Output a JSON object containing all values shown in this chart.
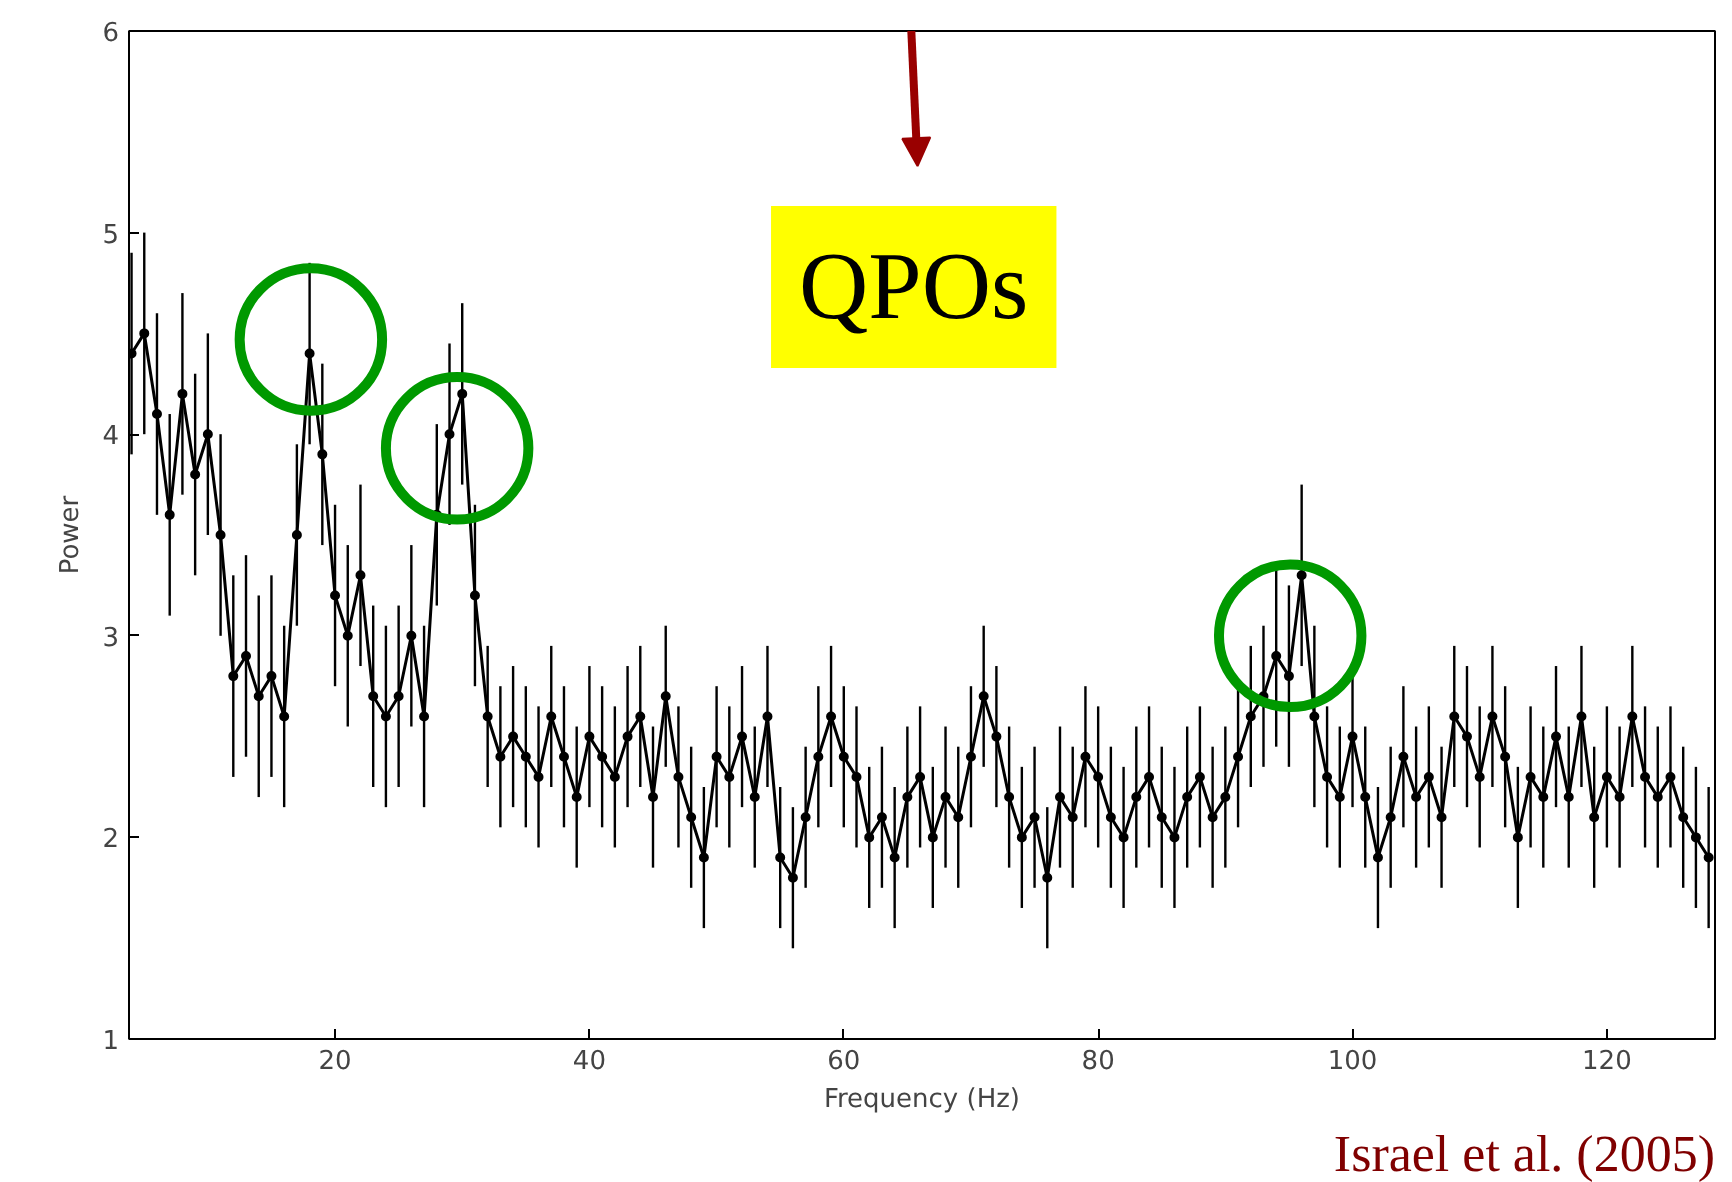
{
  "chart_data": {
    "type": "line",
    "xlabel": "Frequency (Hz)",
    "ylabel": "Power",
    "x": [
      4,
      5,
      6,
      7,
      8,
      9,
      10,
      11,
      12,
      13,
      14,
      15,
      16,
      17,
      18,
      19,
      20,
      21,
      22,
      23,
      24,
      25,
      26,
      27,
      28,
      29,
      30,
      31,
      32,
      33,
      34,
      35,
      36,
      37,
      38,
      39,
      40,
      41,
      42,
      43,
      44,
      45,
      46,
      47,
      48,
      49,
      50,
      51,
      52,
      53,
      54,
      55,
      56,
      57,
      58,
      59,
      60,
      61,
      62,
      63,
      64,
      65,
      66,
      67,
      68,
      69,
      70,
      71,
      72,
      73,
      74,
      75,
      76,
      77,
      78,
      79,
      80,
      81,
      82,
      83,
      84,
      85,
      86,
      87,
      88,
      89,
      90,
      91,
      92,
      93,
      94,
      95,
      96,
      97,
      98,
      99,
      100,
      101,
      102,
      103,
      104,
      105,
      106,
      107,
      108,
      109,
      110,
      111,
      112,
      113,
      114,
      115,
      116,
      117,
      118,
      119,
      120,
      121,
      122,
      123,
      124,
      125,
      126,
      127,
      128
    ],
    "series": [
      {
        "color": "#000000",
        "values": [
          4.4,
          4.5,
          4.1,
          3.6,
          4.2,
          3.8,
          4.0,
          3.5,
          2.8,
          2.9,
          2.7,
          2.8,
          2.6,
          3.5,
          4.4,
          3.9,
          3.2,
          3.0,
          3.3,
          2.7,
          2.6,
          2.7,
          3.0,
          2.6,
          3.6,
          4.0,
          4.2,
          3.2,
          2.6,
          2.4,
          2.5,
          2.4,
          2.3,
          2.6,
          2.4,
          2.2,
          2.5,
          2.4,
          2.3,
          2.5,
          2.6,
          2.2,
          2.7,
          2.3,
          2.1,
          1.9,
          2.4,
          2.3,
          2.5,
          2.2,
          2.6,
          1.9,
          1.8,
          2.1,
          2.4,
          2.6,
          2.4,
          2.3,
          2.0,
          2.1,
          1.9,
          2.2,
          2.3,
          2.0,
          2.2,
          2.1,
          2.4,
          2.7,
          2.5,
          2.2,
          2.0,
          2.1,
          1.8,
          2.2,
          2.1,
          2.4,
          2.3,
          2.1,
          2.0,
          2.2,
          2.3,
          2.1,
          2.0,
          2.2,
          2.3,
          2.1,
          2.2,
          2.4,
          2.6,
          2.7,
          2.9,
          2.8,
          3.3,
          2.6,
          2.3,
          2.2,
          2.5,
          2.2,
          1.9,
          2.1,
          2.4,
          2.2,
          2.3,
          2.1,
          2.6,
          2.5,
          2.3,
          2.6,
          2.4,
          2.0,
          2.3,
          2.2,
          2.5,
          2.2,
          2.6,
          2.1,
          2.3,
          2.2,
          2.6,
          2.3,
          2.2,
          2.3,
          2.1,
          2.0,
          1.9
        ],
        "errors": [
          0.5,
          0.5,
          0.5,
          0.5,
          0.5,
          0.5,
          0.5,
          0.5,
          0.5,
          0.5,
          0.5,
          0.5,
          0.45,
          0.45,
          0.45,
          0.45,
          0.45,
          0.45,
          0.45,
          0.45,
          0.45,
          0.45,
          0.45,
          0.45,
          0.45,
          0.45,
          0.45,
          0.45,
          0.35,
          0.35,
          0.35,
          0.35,
          0.35,
          0.35,
          0.35,
          0.35,
          0.35,
          0.35,
          0.35,
          0.35,
          0.35,
          0.35,
          0.35,
          0.35,
          0.35,
          0.35,
          0.35,
          0.35,
          0.35,
          0.35,
          0.35,
          0.35,
          0.35,
          0.35,
          0.35,
          0.35,
          0.35,
          0.35,
          0.35,
          0.35,
          0.35,
          0.35,
          0.35,
          0.35,
          0.35,
          0.35,
          0.35,
          0.35,
          0.35,
          0.35,
          0.35,
          0.35,
          0.35,
          0.35,
          0.35,
          0.35,
          0.35,
          0.35,
          0.35,
          0.35,
          0.35,
          0.35,
          0.35,
          0.35,
          0.35,
          0.35,
          0.35,
          0.35,
          0.35,
          0.35,
          0.45,
          0.45,
          0.45,
          0.45,
          0.35,
          0.35,
          0.35,
          0.35,
          0.35,
          0.35,
          0.35,
          0.35,
          0.35,
          0.35,
          0.35,
          0.35,
          0.35,
          0.35,
          0.35,
          0.35,
          0.35,
          0.35,
          0.35,
          0.35,
          0.35,
          0.35,
          0.35,
          0.35,
          0.35,
          0.35,
          0.35,
          0.35,
          0.35,
          0.35,
          0.35
        ]
      }
    ],
    "xlim": [
      3.8,
      128.5
    ],
    "ylim": [
      1,
      6
    ],
    "xticks": [
      20,
      40,
      60,
      80,
      100,
      120
    ],
    "yticks": [
      1,
      2,
      3,
      4,
      5,
      6
    ],
    "grid": false,
    "marker": "circle",
    "line_style": "solid",
    "annotations": [
      "QPOs",
      "Israel et al. (2005)"
    ]
  }
}
